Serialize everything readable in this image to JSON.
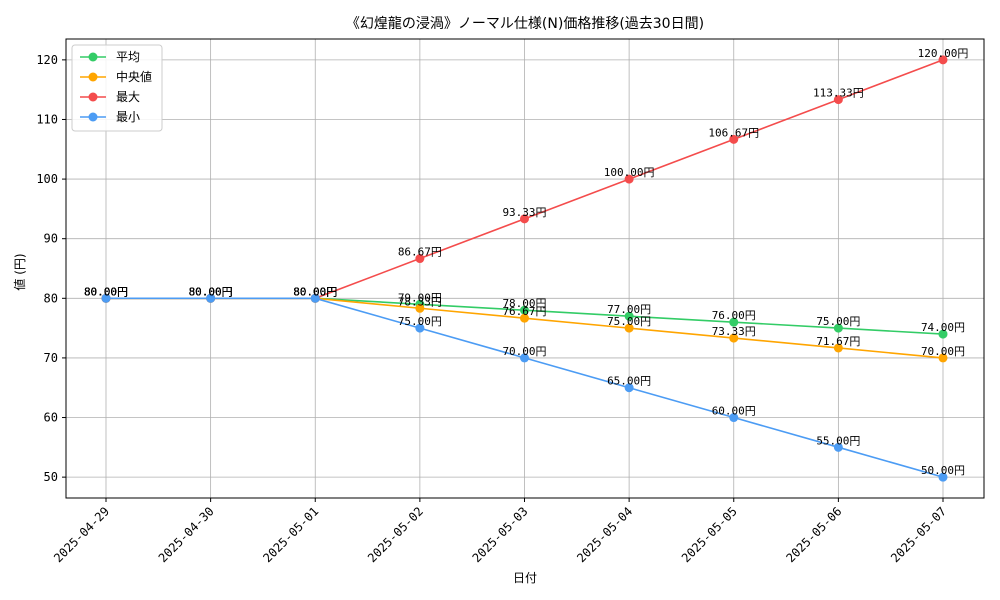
{
  "chart_data": {
    "type": "line",
    "title": "《幻煌龍の浸渦》ノーマル仕様(N)価格推移(過去30日間)",
    "xlabel": "日付",
    "ylabel": "値 (円)",
    "categories": [
      "2025-04-29",
      "2025-04-30",
      "2025-05-01",
      "2025-05-02",
      "2025-05-03",
      "2025-05-04",
      "2025-05-05",
      "2025-05-06",
      "2025-05-07"
    ],
    "ylim": [
      46.5,
      123.5
    ],
    "yticks": [
      50,
      60,
      70,
      80,
      90,
      100,
      110,
      120
    ],
    "grid": true,
    "legend_position": "top-left",
    "value_suffix": "円",
    "series": [
      {
        "name": "平均",
        "color": "#33cc66",
        "values": [
          80,
          80,
          80,
          79,
          78,
          77,
          76,
          75,
          74
        ]
      },
      {
        "name": "中央値",
        "color": "#ffa500",
        "values": [
          80,
          80,
          80,
          78.33,
          76.67,
          75,
          73.33,
          71.67,
          70
        ]
      },
      {
        "name": "最大",
        "color": "#f44c4c",
        "values": [
          80,
          80,
          80,
          86.67,
          93.33,
          100,
          106.67,
          113.33,
          120
        ]
      },
      {
        "name": "最小",
        "color": "#4c9cf4",
        "values": [
          80,
          80,
          80,
          75,
          70,
          65,
          60,
          55,
          50
        ]
      }
    ]
  }
}
